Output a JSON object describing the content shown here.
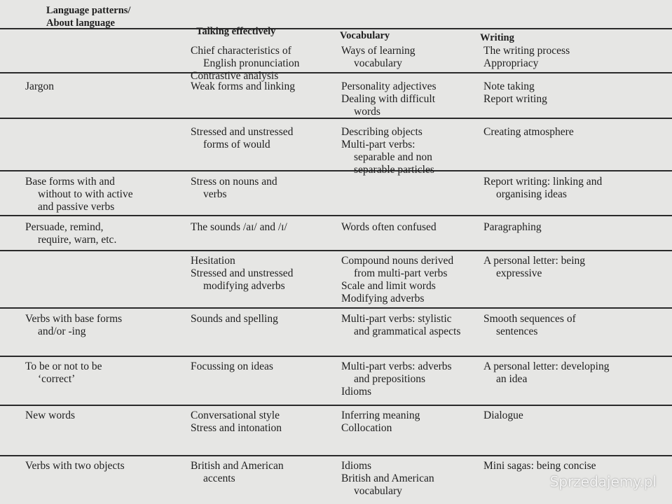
{
  "header": {
    "columns": [
      [
        "Language patterns/",
        "About language"
      ],
      [
        "Talking effectively"
      ],
      [
        "Vocabulary"
      ],
      [
        "Writing"
      ]
    ]
  },
  "table": {
    "rows": [
      [
        [],
        [
          [
            "Chief characteristics of",
            "English pronunciation"
          ],
          [
            "Contrastive analysis"
          ]
        ],
        [
          [
            "Ways of learning",
            "vocabulary"
          ]
        ],
        [
          [
            "The writing process"
          ],
          [
            "Appropriacy"
          ]
        ]
      ],
      [
        [
          [
            "Jargon"
          ]
        ],
        [
          [
            "Weak forms and linking"
          ]
        ],
        [
          [
            "Personality adjectives"
          ],
          [
            "Dealing with difficult",
            "words"
          ]
        ],
        [
          [
            "Note taking"
          ],
          [
            "Report writing"
          ]
        ]
      ],
      [
        [],
        [
          [
            "Stressed and unstressed",
            "forms of would"
          ]
        ],
        [
          [
            "Describing objects"
          ],
          [
            "Multi-part verbs:",
            "separable and non",
            "separable particles"
          ]
        ],
        [
          [
            "Creating atmosphere"
          ]
        ]
      ],
      [
        [
          [
            "Base forms with and",
            "without to with active",
            "and passive verbs"
          ]
        ],
        [
          [
            "Stress on nouns and",
            "verbs"
          ]
        ],
        [],
        [
          [
            "Report writing: linking and",
            "organising ideas"
          ]
        ]
      ],
      [
        [
          [
            "Persuade, remind,",
            "require, warn, etc."
          ]
        ],
        [
          [
            "The sounds /aɪ/ and /ɪ/"
          ]
        ],
        [
          [
            "Words often confused"
          ]
        ],
        [
          [
            "Paragraphing"
          ]
        ]
      ],
      [
        [],
        [
          [
            "Hesitation"
          ],
          [
            "Stressed and unstressed",
            "modifying adverbs"
          ]
        ],
        [
          [
            "Compound nouns derived",
            "from multi-part verbs"
          ],
          [
            "Scale and limit words"
          ],
          [
            "Modifying adverbs"
          ]
        ],
        [
          [
            "A personal letter: being",
            "expressive"
          ]
        ]
      ],
      [
        [
          [
            "Verbs with base forms",
            "and/or -ing"
          ]
        ],
        [
          [
            "Sounds and spelling"
          ]
        ],
        [
          [
            "Multi-part verbs: stylistic",
            "and grammatical aspects"
          ]
        ],
        [
          [
            "Smooth sequences of",
            "sentences"
          ]
        ]
      ],
      [
        [
          [
            "To be or not to be",
            "‘correct’"
          ]
        ],
        [
          [
            "Focussing on ideas"
          ]
        ],
        [
          [
            "Multi-part verbs: adverbs",
            "and prepositions"
          ],
          [
            "Idioms"
          ]
        ],
        [
          [
            "A personal letter: developing",
            "an idea"
          ]
        ]
      ],
      [
        [
          [
            "New words"
          ]
        ],
        [
          [
            "Conversational style"
          ],
          [
            "Stress and intonation"
          ]
        ],
        [
          [
            "Inferring meaning"
          ],
          [
            "Collocation"
          ]
        ],
        [
          [
            "Dialogue"
          ]
        ]
      ],
      [
        [
          [
            "Verbs with two objects"
          ]
        ],
        [
          [
            "British and American",
            "accents"
          ]
        ],
        [
          [
            "Idioms"
          ],
          [
            "British and American",
            "vocabulary"
          ]
        ],
        [
          [
            "Mini sagas: being concise"
          ]
        ]
      ]
    ]
  },
  "watermark": "Sprzedajemy.pl"
}
